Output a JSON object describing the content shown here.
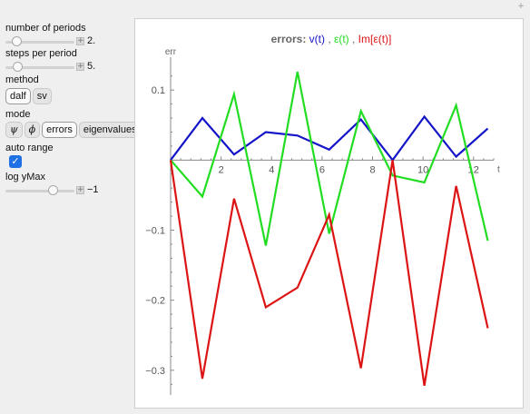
{
  "window": {
    "corner_icon": "plus-icon"
  },
  "controls": {
    "periods": {
      "label": "number of periods",
      "value": "2.",
      "value_fraction": 0.1
    },
    "steps": {
      "label": "steps per period",
      "value": "5.",
      "value_fraction": 0.12
    },
    "method": {
      "label": "method",
      "options": [
        "dalf",
        "sv"
      ],
      "selected": "dalf"
    },
    "mode": {
      "label": "mode",
      "options": [
        "ψ",
        "ϕ",
        "errors",
        "eigenvalues"
      ],
      "selected": "errors"
    },
    "auto_range": {
      "label": "auto range",
      "checked": true,
      "check_glyph": "✓"
    },
    "log_ymax": {
      "label": "log yMax",
      "value": "−1",
      "value_fraction": 0.72
    }
  },
  "chart_data": {
    "type": "line",
    "title": {
      "prefix": "errors:",
      "parts": [
        {
          "text": "v(t)",
          "color": "#1414c8"
        },
        {
          "text": ",",
          "color": "#666666"
        },
        {
          "text": "ε(t)",
          "color": "#22dd22"
        },
        {
          "text": ",",
          "color": "#666666"
        },
        {
          "text": "Im[ε(t)]",
          "color": "#dd1414"
        }
      ]
    },
    "xlabel": "t",
    "ylabel": "err",
    "xlim": [
      0,
      12.8
    ],
    "ylim": [
      -0.33,
      0.13
    ],
    "xticks": [
      2,
      4,
      6,
      8,
      10,
      12
    ],
    "yticks": [
      0.1,
      -0.1,
      -0.2,
      -0.3
    ],
    "ytick_labels": [
      "0.1",
      "−0.1",
      "−0.2",
      "−0.3"
    ],
    "x": [
      0,
      1.257,
      2.513,
      3.77,
      5.027,
      6.283,
      7.54,
      8.796,
      10.053,
      11.31,
      12.566
    ],
    "series": [
      {
        "color": "#1414c8",
        "values": [
          0,
          0.06,
          0.008,
          0.04,
          0.035,
          0.015,
          0.058,
          0,
          0.062,
          0.005,
          0.045
        ]
      },
      {
        "color": "#22dd22",
        "values": [
          0,
          -0.052,
          0.094,
          -0.122,
          0.126,
          -0.105,
          0.07,
          -0.022,
          -0.032,
          0.078,
          -0.115
        ]
      },
      {
        "color": "#dd1414",
        "values": [
          0,
          -0.312,
          -0.055,
          -0.21,
          -0.182,
          -0.078,
          -0.297,
          0,
          -0.322,
          -0.037,
          -0.24
        ]
      }
    ]
  }
}
